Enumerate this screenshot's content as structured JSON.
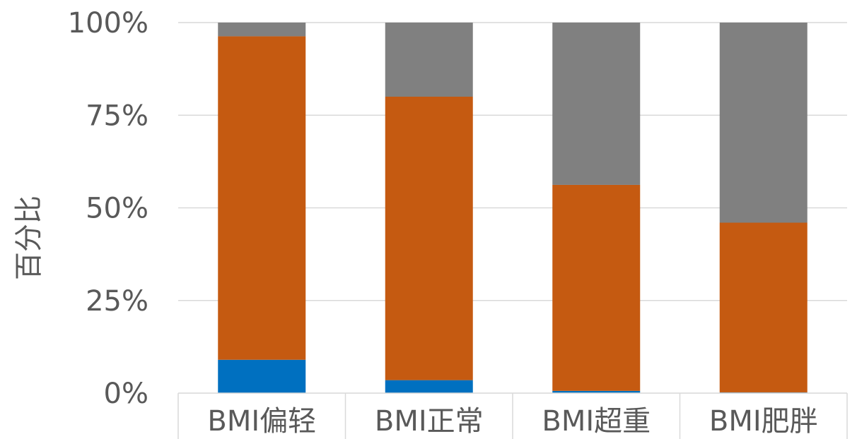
{
  "chart_data": {
    "type": "bar",
    "stacked": "percent",
    "categories": [
      "BMI偏轻",
      "BMI正常",
      "BMI超重",
      "BMI肥胖"
    ],
    "series": [
      {
        "values": [
          9,
          3.5,
          0.6,
          0.2
        ],
        "color": "#0070C0"
      },
      {
        "values": [
          87.3,
          76.5,
          55.6,
          45.8
        ],
        "color": "#C55A11"
      },
      {
        "values": [
          3.7,
          20,
          43.8,
          54
        ],
        "color": "#808080"
      }
    ],
    "ylabel": "百分比",
    "ylim": [
      0,
      100
    ],
    "yticks": [
      "0%",
      "25%",
      "50%",
      "75%",
      "100%"
    ],
    "grid": true,
    "legend": "none"
  }
}
